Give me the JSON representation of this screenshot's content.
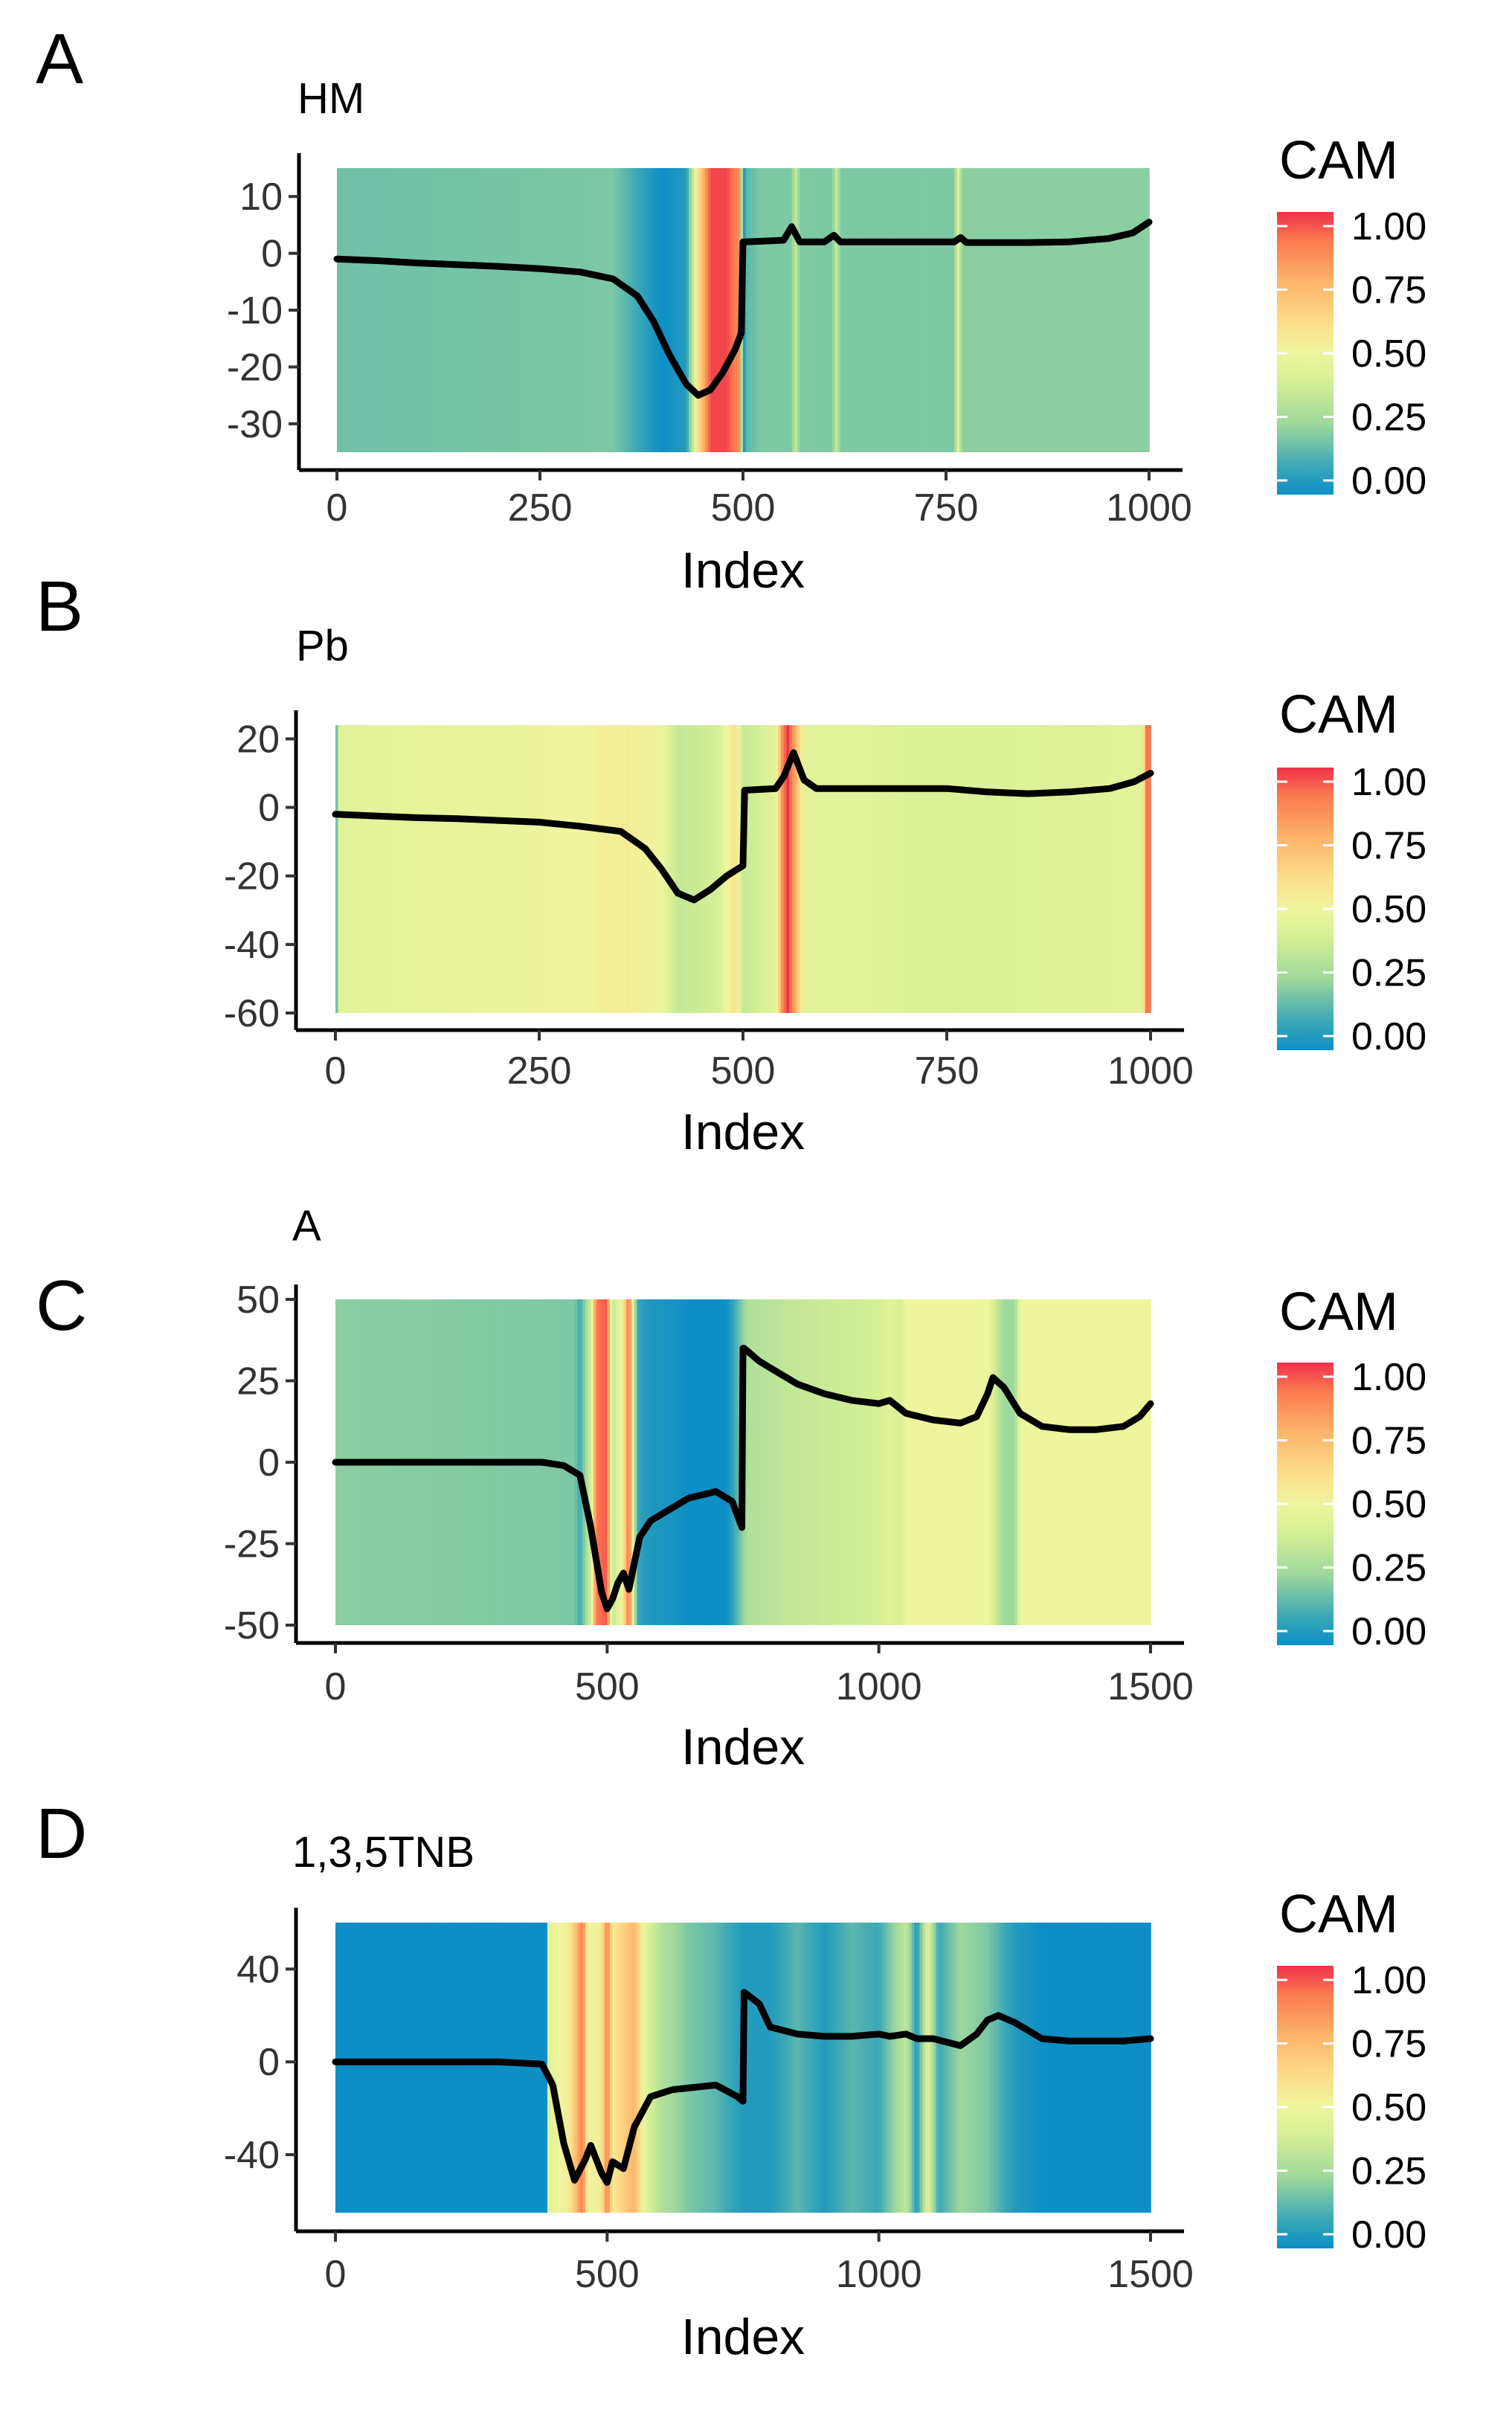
{
  "panels": [
    {
      "letter": "A",
      "legend": {
        "title": "CAM",
        "labels": [
          "1.00",
          "0.75",
          "0.50",
          "0.25",
          "0.00"
        ]
      },
      "chart_data": {
        "type": "line",
        "title": "HM",
        "xlabel": "Index",
        "ylabel": "",
        "xlim": [
          0,
          1000
        ],
        "ylim": [
          -35,
          15
        ],
        "x_ticks": [
          "0",
          "250",
          "500",
          "750",
          "1000"
        ],
        "x_tick_values": [
          0,
          250,
          500,
          750,
          1000
        ],
        "y_ticks": [
          "10",
          "0",
          "-10",
          "-20",
          "-30"
        ],
        "y_tick_values": [
          10,
          0,
          -10,
          -20,
          -30
        ],
        "background_colormap": "CAM (Spectral)",
        "cam_range": [
          0,
          1
        ],
        "cam": [
          [
            0,
            0.18
          ],
          [
            340,
            0.2
          ],
          [
            370,
            0.1
          ],
          [
            400,
            0.0
          ],
          [
            430,
            0.05
          ],
          [
            445,
            0.6
          ],
          [
            460,
            0.97
          ],
          [
            480,
            0.97
          ],
          [
            495,
            0.85
          ],
          [
            500,
            0.0
          ],
          [
            505,
            0.15
          ],
          [
            520,
            0.2
          ],
          [
            560,
            0.2
          ],
          [
            565,
            0.35
          ],
          [
            570,
            0.2
          ],
          [
            610,
            0.2
          ],
          [
            615,
            0.35
          ],
          [
            620,
            0.2
          ],
          [
            760,
            0.2
          ],
          [
            765,
            0.45
          ],
          [
            770,
            0.22
          ],
          [
            1000,
            0.22
          ]
        ],
        "series": [
          {
            "x": [
              0,
              50,
              100,
              150,
              200,
              250,
              300,
              340,
              370,
              390,
              410,
              430,
              445,
              460,
              475,
              490,
              498,
              500,
              502,
              550,
              560,
              570,
              600,
              612,
              620,
              700,
              760,
              768,
              775,
              800,
              850,
              900,
              950,
              980,
              1000
            ],
            "y": [
              -1,
              -1.3,
              -1.7,
              -2,
              -2.3,
              -2.7,
              -3.3,
              -4.5,
              -7.5,
              -12,
              -18,
              -23,
              -25,
              -24,
              -21,
              -17,
              -14,
              2,
              2,
              2.3,
              4.7,
              2,
              2,
              3.2,
              2,
              2,
              2,
              2.8,
              1.9,
              1.9,
              1.9,
              2,
              2.6,
              3.6,
              5.5
            ]
          }
        ]
      }
    },
    {
      "letter": "B",
      "legend": {
        "title": "CAM",
        "labels": [
          "1.00",
          "0.75",
          "0.50",
          "0.25",
          "0.00"
        ]
      },
      "chart_data": {
        "type": "line",
        "title": "Pb",
        "xlabel": "Index",
        "ylabel": "",
        "xlim": [
          0,
          1000
        ],
        "ylim": [
          -60,
          24
        ],
        "x_ticks": [
          "0",
          "250",
          "500",
          "750",
          "1000"
        ],
        "x_tick_values": [
          0,
          250,
          500,
          750,
          1000
        ],
        "y_ticks": [
          "20",
          "0",
          "-20",
          "-40",
          "-60"
        ],
        "y_tick_values": [
          20,
          0,
          -20,
          -40,
          -60
        ],
        "background_colormap": "CAM (Spectral)",
        "cam_range": [
          0,
          1
        ],
        "cam": [
          [
            0,
            0.0
          ],
          [
            4,
            0.45
          ],
          [
            300,
            0.5
          ],
          [
            350,
            0.55
          ],
          [
            400,
            0.5
          ],
          [
            420,
            0.35
          ],
          [
            470,
            0.4
          ],
          [
            490,
            0.6
          ],
          [
            500,
            0.35
          ],
          [
            540,
            0.45
          ],
          [
            548,
            0.85
          ],
          [
            555,
            1.0
          ],
          [
            565,
            0.75
          ],
          [
            575,
            0.45
          ],
          [
            650,
            0.45
          ],
          [
            700,
            0.42
          ],
          [
            800,
            0.42
          ],
          [
            990,
            0.45
          ],
          [
            995,
            0.9
          ],
          [
            1000,
            0.9
          ]
        ],
        "series": [
          {
            "x": [
              0,
              50,
              100,
              150,
              200,
              250,
              300,
              350,
              380,
              400,
              420,
              440,
              460,
              480,
              500,
              502,
              540,
              550,
              562,
              575,
              590,
              650,
              700,
              750,
              800,
              850,
              900,
              950,
              980,
              1000
            ],
            "y": [
              -2,
              -2.5,
              -3,
              -3.3,
              -3.8,
              -4.3,
              -5.5,
              -7,
              -12,
              -18,
              -25,
              -27,
              -24,
              -20,
              -17,
              5,
              5.5,
              9,
              16,
              8,
              5.5,
              5.5,
              5.5,
              5.5,
              4.5,
              4,
              4.5,
              5.5,
              7.5,
              10
            ]
          }
        ]
      }
    },
    {
      "letter": "C",
      "legend": {
        "title": "CAM",
        "labels": [
          "1.00",
          "0.75",
          "0.50",
          "0.25",
          "0.00"
        ]
      },
      "chart_data": {
        "type": "line",
        "title": "A",
        "xlabel": "Index",
        "ylabel": "",
        "xlim": [
          0,
          1500
        ],
        "ylim": [
          -50,
          50
        ],
        "x_ticks": [
          "0",
          "500",
          "1000",
          "1500"
        ],
        "x_tick_values": [
          0,
          500,
          1000,
          1500
        ],
        "y_ticks": [
          "50",
          "25",
          "0",
          "-25",
          "-50"
        ],
        "y_tick_values": [
          50,
          25,
          0,
          -25,
          -50
        ],
        "background_colormap": "CAM (Spectral)",
        "cam_range": [
          0,
          1
        ],
        "cam": [
          [
            0,
            0.22
          ],
          [
            440,
            0.2
          ],
          [
            450,
            0.1
          ],
          [
            470,
            0.4
          ],
          [
            480,
            0.9
          ],
          [
            500,
            0.95
          ],
          [
            510,
            0.35
          ],
          [
            530,
            0.55
          ],
          [
            540,
            0.95
          ],
          [
            555,
            0.1
          ],
          [
            570,
            0.05
          ],
          [
            650,
            0.0
          ],
          [
            720,
            0.0
          ],
          [
            740,
            0.15
          ],
          [
            760,
            0.3
          ],
          [
            850,
            0.35
          ],
          [
            1000,
            0.4
          ],
          [
            1020,
            0.45
          ],
          [
            1040,
            0.4
          ],
          [
            1050,
            0.5
          ],
          [
            1200,
            0.5
          ],
          [
            1230,
            0.25
          ],
          [
            1250,
            0.25
          ],
          [
            1260,
            0.5
          ],
          [
            1500,
            0.5
          ]
        ],
        "series": [
          {
            "x": [
              0,
              100,
              200,
              300,
              380,
              420,
              450,
              470,
              490,
              500,
              510,
              520,
              530,
              540,
              560,
              580,
              620,
              650,
              700,
              730,
              748,
              750,
              752,
              780,
              800,
              850,
              900,
              950,
              1000,
              1020,
              1050,
              1100,
              1150,
              1180,
              1200,
              1210,
              1230,
              1260,
              1300,
              1350,
              1400,
              1450,
              1480,
              1500
            ],
            "y": [
              0,
              0,
              0,
              0,
              0,
              -1,
              -4,
              -20,
              -40,
              -45,
              -42,
              -37,
              -34,
              -39,
              -23,
              -18,
              -14,
              -11,
              -9,
              -12,
              -20,
              35,
              35,
              31,
              29,
              24,
              21,
              19,
              18,
              19,
              15,
              13,
              12,
              14,
              21,
              26,
              23,
              15,
              11,
              10,
              10,
              11,
              14,
              18
            ]
          }
        ]
      }
    },
    {
      "letter": "D",
      "legend": {
        "title": "CAM",
        "labels": [
          "1.00",
          "0.75",
          "0.50",
          "0.25",
          "0.00"
        ]
      },
      "chart_data": {
        "type": "line",
        "title": "1,3,5TNB",
        "xlabel": "Index",
        "ylabel": "",
        "xlim": [
          0,
          1500
        ],
        "ylim": [
          -65,
          60
        ],
        "x_ticks": [
          "0",
          "500",
          "1000",
          "1500"
        ],
        "x_tick_values": [
          0,
          500,
          1000,
          1500
        ],
        "y_ticks": [
          "40",
          "0",
          "-40"
        ],
        "y_tick_values": [
          40,
          0,
          -40
        ],
        "background_colormap": "CAM (Spectral)",
        "cam_range": [
          0,
          1
        ],
        "cam": [
          [
            0,
            0.0
          ],
          [
            388,
            0.0
          ],
          [
            392,
            0.45
          ],
          [
            430,
            0.55
          ],
          [
            455,
            0.9
          ],
          [
            465,
            0.5
          ],
          [
            490,
            0.55
          ],
          [
            500,
            0.9
          ],
          [
            510,
            0.55
          ],
          [
            530,
            0.65
          ],
          [
            550,
            0.75
          ],
          [
            570,
            0.45
          ],
          [
            600,
            0.3
          ],
          [
            650,
            0.2
          ],
          [
            700,
            0.15
          ],
          [
            750,
            0.05
          ],
          [
            800,
            0.05
          ],
          [
            850,
            0.15
          ],
          [
            900,
            0.05
          ],
          [
            950,
            0.15
          ],
          [
            1000,
            0.1
          ],
          [
            1050,
            0.35
          ],
          [
            1070,
            0.05
          ],
          [
            1090,
            0.45
          ],
          [
            1110,
            0.1
          ],
          [
            1150,
            0.25
          ],
          [
            1200,
            0.2
          ],
          [
            1250,
            0.05
          ],
          [
            1300,
            0.0
          ],
          [
            1500,
            0.0
          ]
        ],
        "series": [
          {
            "x": [
              0,
              100,
              200,
              300,
              380,
              400,
              420,
              440,
              460,
              470,
              490,
              500,
              510,
              530,
              550,
              580,
              620,
              660,
              700,
              740,
              750,
              752,
              780,
              800,
              850,
              900,
              950,
              1000,
              1020,
              1050,
              1070,
              1100,
              1150,
              1180,
              1200,
              1220,
              1250,
              1300,
              1350,
              1400,
              1450,
              1500
            ],
            "y": [
              0,
              0,
              0,
              0,
              -1,
              -10,
              -35,
              -51,
              -42,
              -36,
              -48,
              -52,
              -43,
              -46,
              -28,
              -15,
              -12,
              -11,
              -10,
              -15,
              -17,
              30,
              25,
              15,
              12,
              11,
              11,
              12,
              11,
              12,
              10,
              10,
              7,
              12,
              18,
              20,
              17,
              10,
              9,
              9,
              9,
              10
            ]
          }
        ]
      }
    }
  ]
}
